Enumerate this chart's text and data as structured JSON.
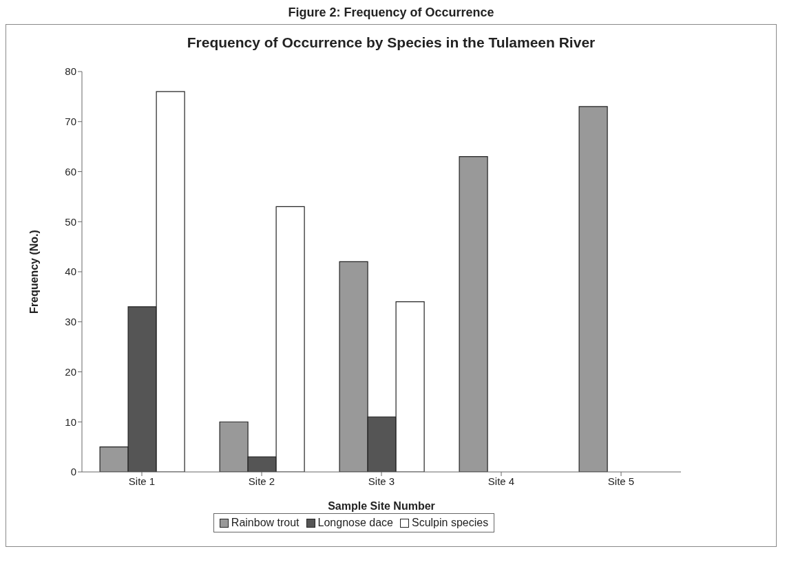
{
  "chart_data": {
    "type": "bar",
    "title": "Figure 2: Frequency of Occurrence",
    "subtitle": "Frequency of Occurrence by Species in the Tulameen River",
    "xlabel": "Sample Site Number",
    "ylabel": "Frequency (No.)",
    "categories": [
      "Site 1",
      "Site 2",
      "Site 3",
      "Site 4",
      "Site 5"
    ],
    "series": [
      {
        "name": "Rainbow trout",
        "color": "#999999",
        "values": [
          5,
          10,
          42,
          63,
          73
        ]
      },
      {
        "name": "Longnose dace",
        "color": "#555555",
        "values": [
          33,
          3,
          11,
          null,
          null
        ]
      },
      {
        "name": "Sculpin species",
        "color": "#ffffff",
        "values": [
          76,
          53,
          34,
          null,
          null
        ]
      }
    ],
    "ylim": [
      0,
      80
    ],
    "yticks": [
      0,
      10,
      20,
      30,
      40,
      50,
      60,
      70,
      80
    ],
    "grid": false,
    "legend": "bottom"
  }
}
